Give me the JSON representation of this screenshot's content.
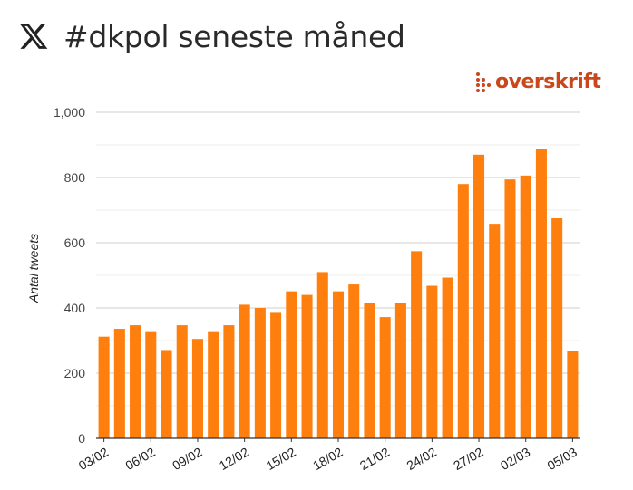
{
  "header": {
    "title": "#dkpol seneste måned",
    "logo_icon": "x-logo-icon"
  },
  "brand": {
    "name": "overskrift",
    "color": "#c8481c",
    "icon": "dot-grid-icon"
  },
  "colors": {
    "bar": "#ff7f0e",
    "grid": "#d9d9d9",
    "axis": "#333333"
  },
  "chart_data": {
    "type": "bar",
    "title": "#dkpol seneste måned",
    "xlabel": "",
    "ylabel": "Antal tweets",
    "ylim": [
      0,
      1000
    ],
    "yticks": [
      0,
      200,
      400,
      600,
      800,
      1000
    ],
    "ytick_labels": [
      "0",
      "200",
      "400",
      "600",
      "800",
      "1,000"
    ],
    "grid": true,
    "categories": [
      "03/02",
      "04/02",
      "05/02",
      "06/02",
      "07/02",
      "08/02",
      "09/02",
      "10/02",
      "11/02",
      "12/02",
      "13/02",
      "14/02",
      "15/02",
      "16/02",
      "17/02",
      "18/02",
      "19/02",
      "20/02",
      "21/02",
      "22/02",
      "23/02",
      "24/02",
      "25/02",
      "26/02",
      "27/02",
      "28/02",
      "01/03",
      "02/03",
      "03/03",
      "04/03",
      "05/03"
    ],
    "values": [
      312,
      336,
      347,
      326,
      271,
      347,
      305,
      326,
      347,
      410,
      400,
      385,
      451,
      440,
      510,
      451,
      472,
      416,
      372,
      416,
      574,
      468,
      493,
      780,
      870,
      658,
      794,
      806,
      887,
      675,
      267
    ],
    "xtick_labels": [
      "03/02",
      "06/02",
      "09/02",
      "12/02",
      "15/02",
      "18/02",
      "21/02",
      "24/02",
      "27/02",
      "02/03",
      "05/03"
    ],
    "xtick_indices": [
      0,
      3,
      6,
      9,
      12,
      15,
      18,
      21,
      24,
      27,
      30
    ]
  }
}
